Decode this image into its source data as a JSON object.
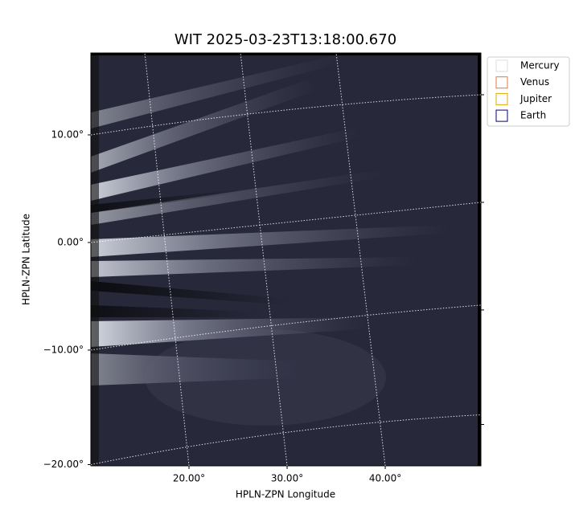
{
  "chart_data": {
    "type": "image",
    "title": "WIT 2025-03-23T13:18:00.670",
    "x_label": "HPLN-ZPN Longitude",
    "y_label": "HPLN-ZPN Latitude",
    "xlim": [
      10.0,
      49.75
    ],
    "ylim": [
      -20.1,
      17.25
    ],
    "yscale": "tan",
    "xticks": [
      {
        "value": 20,
        "label": "20.00°"
      },
      {
        "value": 30,
        "label": "30.00°"
      },
      {
        "value": 40,
        "label": "40.00°"
      }
    ],
    "yticks": [
      {
        "value": 10,
        "label": "10.00°"
      },
      {
        "value": 0,
        "label": "0.00°"
      },
      {
        "value": -10,
        "label": "−10.00°"
      },
      {
        "value": -20,
        "label": "−20.00°"
      }
    ],
    "grid": true,
    "legend": {
      "loc": "upper right",
      "entries": [
        {
          "name": "Mercury",
          "color": "#dddddd"
        },
        {
          "name": "Venus",
          "color": "#e07b39"
        },
        {
          "name": "Jupiter",
          "color": "#e0a800"
        },
        {
          "name": "Earth",
          "color": "#000080"
        }
      ]
    }
  }
}
